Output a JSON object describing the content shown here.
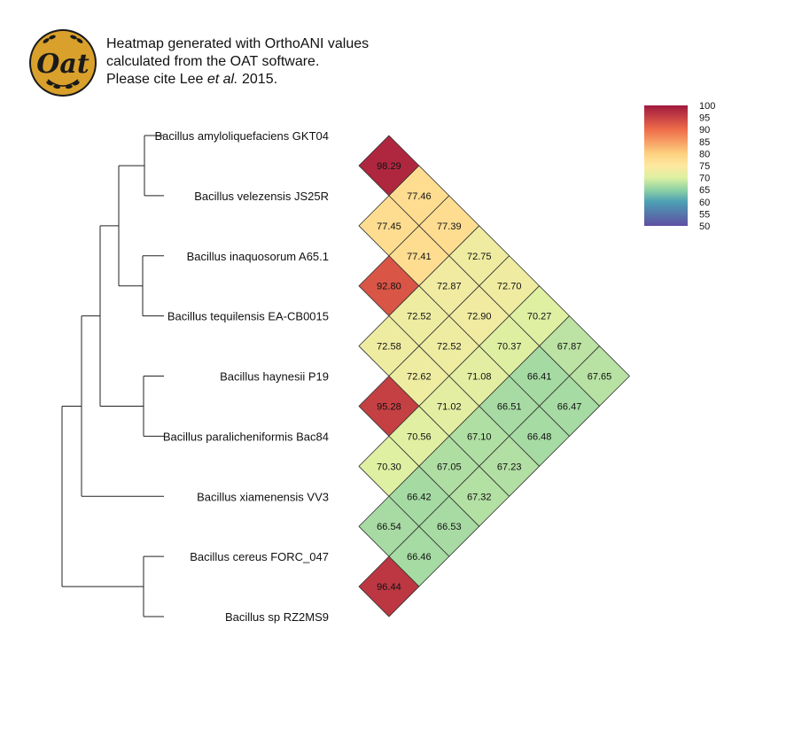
{
  "header": {
    "line1": "Heatmap generated with OrthoANI values",
    "line2": "calculated from the OAT software.",
    "line3_prefix": "Please cite Lee ",
    "line3_italic": "et al.",
    "line3_suffix": " 2015."
  },
  "logo": {
    "text": "Oat",
    "bg_color": "#d9a12b",
    "ring_color": "#1a1a1a"
  },
  "chart_data": {
    "type": "heatmap",
    "title": "",
    "taxa": [
      "Bacillus amyloliquefaciens GKT04",
      "Bacillus velezensis JS25R",
      "Bacillus inaquosorum A65.1",
      "Bacillus tequilensis EA-CB0015",
      "Bacillus haynesii P19",
      "Bacillus paralicheniformis Bac84",
      "Bacillus xiamenensis VV3",
      "Bacillus cereus FORC_047",
      "Bacillus sp RZ2MS9"
    ],
    "matrix_lower": [
      [],
      [
        "98.29"
      ],
      [
        "77.46",
        "77.45"
      ],
      [
        "77.39",
        "77.41",
        "92.80"
      ],
      [
        "72.75",
        "72.87",
        "72.52",
        "72.58"
      ],
      [
        "72.70",
        "72.90",
        "72.52",
        "72.62",
        "95.28"
      ],
      [
        "70.27",
        "70.37",
        "71.08",
        "71.02",
        "70.56",
        "70.30"
      ],
      [
        "67.87",
        "66.41",
        "66.51",
        "67.10",
        "67.05",
        "66.42",
        "66.54"
      ],
      [
        "67.65",
        "66.47",
        "66.48",
        "67.23",
        "67.32",
        "66.53",
        "66.46",
        "96.44"
      ]
    ],
    "color_scale": {
      "min": 50,
      "max": 100,
      "ticks": [
        "100",
        "95",
        "90",
        "85",
        "80",
        "75",
        "70",
        "65",
        "60",
        "55",
        "50"
      ],
      "stops": [
        {
          "v": 50,
          "color": "#5e4fa2"
        },
        {
          "v": 60,
          "color": "#4d9fb5"
        },
        {
          "v": 65,
          "color": "#8fd2a4"
        },
        {
          "v": 70,
          "color": "#ddf0a2"
        },
        {
          "v": 75,
          "color": "#fee8a0"
        },
        {
          "v": 80,
          "color": "#fdd180"
        },
        {
          "v": 90,
          "color": "#ef6c4a"
        },
        {
          "v": 100,
          "color": "#a0193d"
        }
      ]
    },
    "dendrogram": "((((0,1),(2,3)),(4,5)),6),(7,8)"
  }
}
